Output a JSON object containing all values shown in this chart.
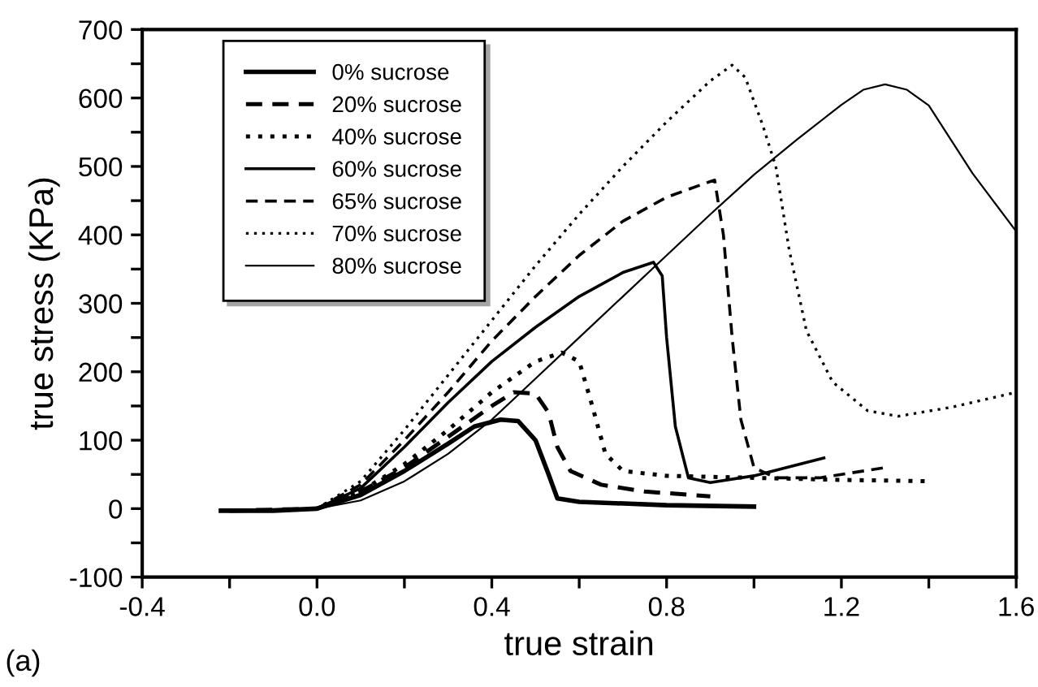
{
  "chart_data": {
    "type": "line",
    "xlabel": "true strain",
    "ylabel": "true stress (KPa)",
    "annotations": [
      "(a)"
    ],
    "xlim": [
      -0.4,
      1.6
    ],
    "ylim": [
      -100,
      700
    ],
    "xticks": [
      -0.4,
      {
        "value": -0.2,
        "label": null
      },
      {
        "value": 0,
        "label": "0.0"
      },
      {
        "value": 0.2,
        "label": null
      },
      0.4,
      {
        "value": 0.6,
        "label": null
      },
      0.8,
      {
        "value": 1.0,
        "label": null
      },
      1.2,
      {
        "value": 1.4,
        "label": null
      },
      1.6
    ],
    "yticks": [
      -100,
      {
        "value": -50,
        "label": null
      },
      0,
      {
        "value": 50,
        "label": null
      },
      100,
      {
        "value": 150,
        "label": null
      },
      200,
      {
        "value": 250,
        "label": null
      },
      300,
      {
        "value": 350,
        "label": null
      },
      400,
      {
        "value": 450,
        "label": null
      },
      500,
      {
        "value": 550,
        "label": null
      },
      600,
      {
        "value": 650,
        "label": null
      },
      700
    ],
    "grid": false,
    "legend": "top left",
    "marker": "none",
    "series": [
      {
        "name": "0% sucrose",
        "color": "#000000",
        "line_style": "solid",
        "x": [
          -0.22,
          -0.1,
          0,
          0.1,
          0.2,
          0.3,
          0.36,
          0.42,
          0.46,
          0.5,
          0.53,
          0.55,
          0.6,
          0.8,
          1.0
        ],
        "values": [
          -3,
          -3,
          0,
          20,
          55,
          95,
          120,
          130,
          128,
          100,
          50,
          15,
          10,
          5,
          3
        ]
      },
      {
        "name": "20% sucrose",
        "color": "#000000",
        "line_style": "dashed",
        "x": [
          -0.2,
          0,
          0.1,
          0.2,
          0.3,
          0.4,
          0.45,
          0.5,
          0.53,
          0.55,
          0.58,
          0.65,
          0.75,
          0.9
        ],
        "values": [
          -3,
          0,
          25,
          60,
          105,
          150,
          170,
          168,
          140,
          90,
          55,
          35,
          25,
          18
        ]
      },
      {
        "name": "40% sucrose",
        "color": "#000000",
        "line_style": "dotted",
        "x": [
          0,
          0.1,
          0.2,
          0.3,
          0.4,
          0.5,
          0.56,
          0.6,
          0.63,
          0.66,
          0.7,
          0.8,
          1.0,
          1.2,
          1.4
        ],
        "values": [
          0,
          25,
          65,
          115,
          170,
          215,
          228,
          215,
          150,
          80,
          55,
          48,
          45,
          42,
          40
        ]
      },
      {
        "name": "60% sucrose",
        "color": "#000000",
        "line_style": "solid",
        "x": [
          -0.2,
          0,
          0.1,
          0.2,
          0.3,
          0.4,
          0.5,
          0.6,
          0.7,
          0.77,
          0.79,
          0.8,
          0.82,
          0.85,
          0.9,
          1.0,
          1.16
        ],
        "values": [
          -3,
          0,
          30,
          90,
          155,
          215,
          265,
          310,
          345,
          360,
          340,
          250,
          120,
          45,
          38,
          48,
          74
        ]
      },
      {
        "name": "65% sucrose",
        "color": "#000000",
        "line_style": "dashed",
        "x": [
          0,
          0.1,
          0.2,
          0.3,
          0.4,
          0.5,
          0.6,
          0.7,
          0.8,
          0.9,
          0.91,
          0.93,
          0.95,
          0.97,
          1.0,
          1.05,
          1.15,
          1.3
        ],
        "values": [
          0,
          35,
          100,
          170,
          245,
          310,
          370,
          420,
          455,
          478,
          480,
          400,
          250,
          130,
          60,
          45,
          45,
          60
        ]
      },
      {
        "name": "70% sucrose",
        "color": "#000000",
        "line_style": "dotted",
        "x": [
          0,
          0.1,
          0.2,
          0.3,
          0.4,
          0.5,
          0.6,
          0.7,
          0.8,
          0.9,
          0.95,
          0.98,
          1.02,
          1.05,
          1.08,
          1.12,
          1.18,
          1.26,
          1.33,
          1.45,
          1.6
        ],
        "values": [
          0,
          40,
          115,
          195,
          275,
          355,
          430,
          500,
          565,
          625,
          648,
          630,
          560,
          500,
          380,
          260,
          185,
          143,
          135,
          148,
          170
        ]
      },
      {
        "name": "80% sucrose",
        "color": "#000000",
        "line_style": "solid",
        "x": [
          -0.2,
          0,
          0.1,
          0.2,
          0.3,
          0.4,
          0.5,
          0.6,
          0.7,
          0.8,
          0.9,
          1.0,
          1.1,
          1.2,
          1.25,
          1.3,
          1.35,
          1.4,
          1.5,
          1.6
        ],
        "values": [
          -3,
          0,
          12,
          40,
          80,
          130,
          190,
          250,
          310,
          370,
          430,
          488,
          540,
          590,
          612,
          620,
          612,
          589,
          490,
          405
        ]
      }
    ]
  }
}
